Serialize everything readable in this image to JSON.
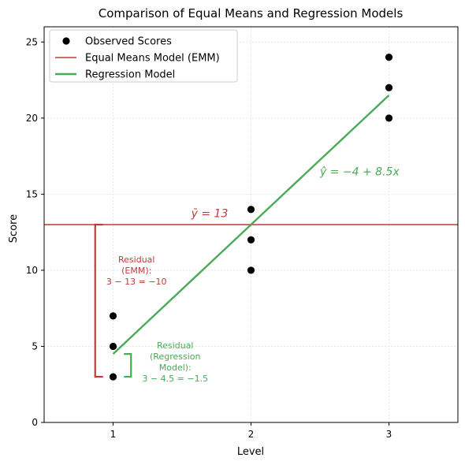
{
  "chart_data": {
    "type": "scatter",
    "title": "Comparison of Equal Means and Regression Models",
    "xlabel": "Level",
    "ylabel": "Score",
    "xlim": [
      0.5,
      3.5
    ],
    "ylim": [
      0,
      26
    ],
    "xticks": [
      1,
      2,
      3
    ],
    "yticks": [
      0,
      5,
      10,
      15,
      20,
      25
    ],
    "grid": true,
    "legend_position": "top-left",
    "series": [
      {
        "name": "Observed Scores",
        "kind": "scatter",
        "color": "#000000",
        "points": [
          [
            1,
            3
          ],
          [
            1,
            5
          ],
          [
            1,
            7
          ],
          [
            2,
            10
          ],
          [
            2,
            12
          ],
          [
            2,
            14
          ],
          [
            3,
            20
          ],
          [
            3,
            22
          ],
          [
            3,
            24
          ]
        ]
      },
      {
        "name": "Equal Means Model (EMM)",
        "kind": "hline",
        "color": "#c0393b",
        "y": 13
      },
      {
        "name": "Regression Model",
        "kind": "line",
        "color": "#4aaa55",
        "intercept": -4,
        "slope": 8.5,
        "x_range": [
          1,
          3
        ]
      }
    ],
    "annotations": {
      "mean_label": "ȳ = 13",
      "mean_label_position": [
        1.7,
        13.5
      ],
      "regression_label": "ŷ = −4 + 8.5x",
      "regression_label_position": [
        2.5,
        16.5
      ],
      "emm_residual": {
        "lines": [
          "Residual",
          "(EMM):",
          "3 − 13 = −10"
        ],
        "from": 13,
        "to": 3,
        "x": 0.87,
        "text_position": [
          1.17,
          10
        ]
      },
      "reg_residual": {
        "lines": [
          "Residual",
          "(Regression",
          "Model):",
          "3 − 4.5 = −1.5"
        ],
        "from": 4.5,
        "to": 3,
        "x": 1.13,
        "text_position": [
          1.45,
          4
        ]
      }
    }
  }
}
